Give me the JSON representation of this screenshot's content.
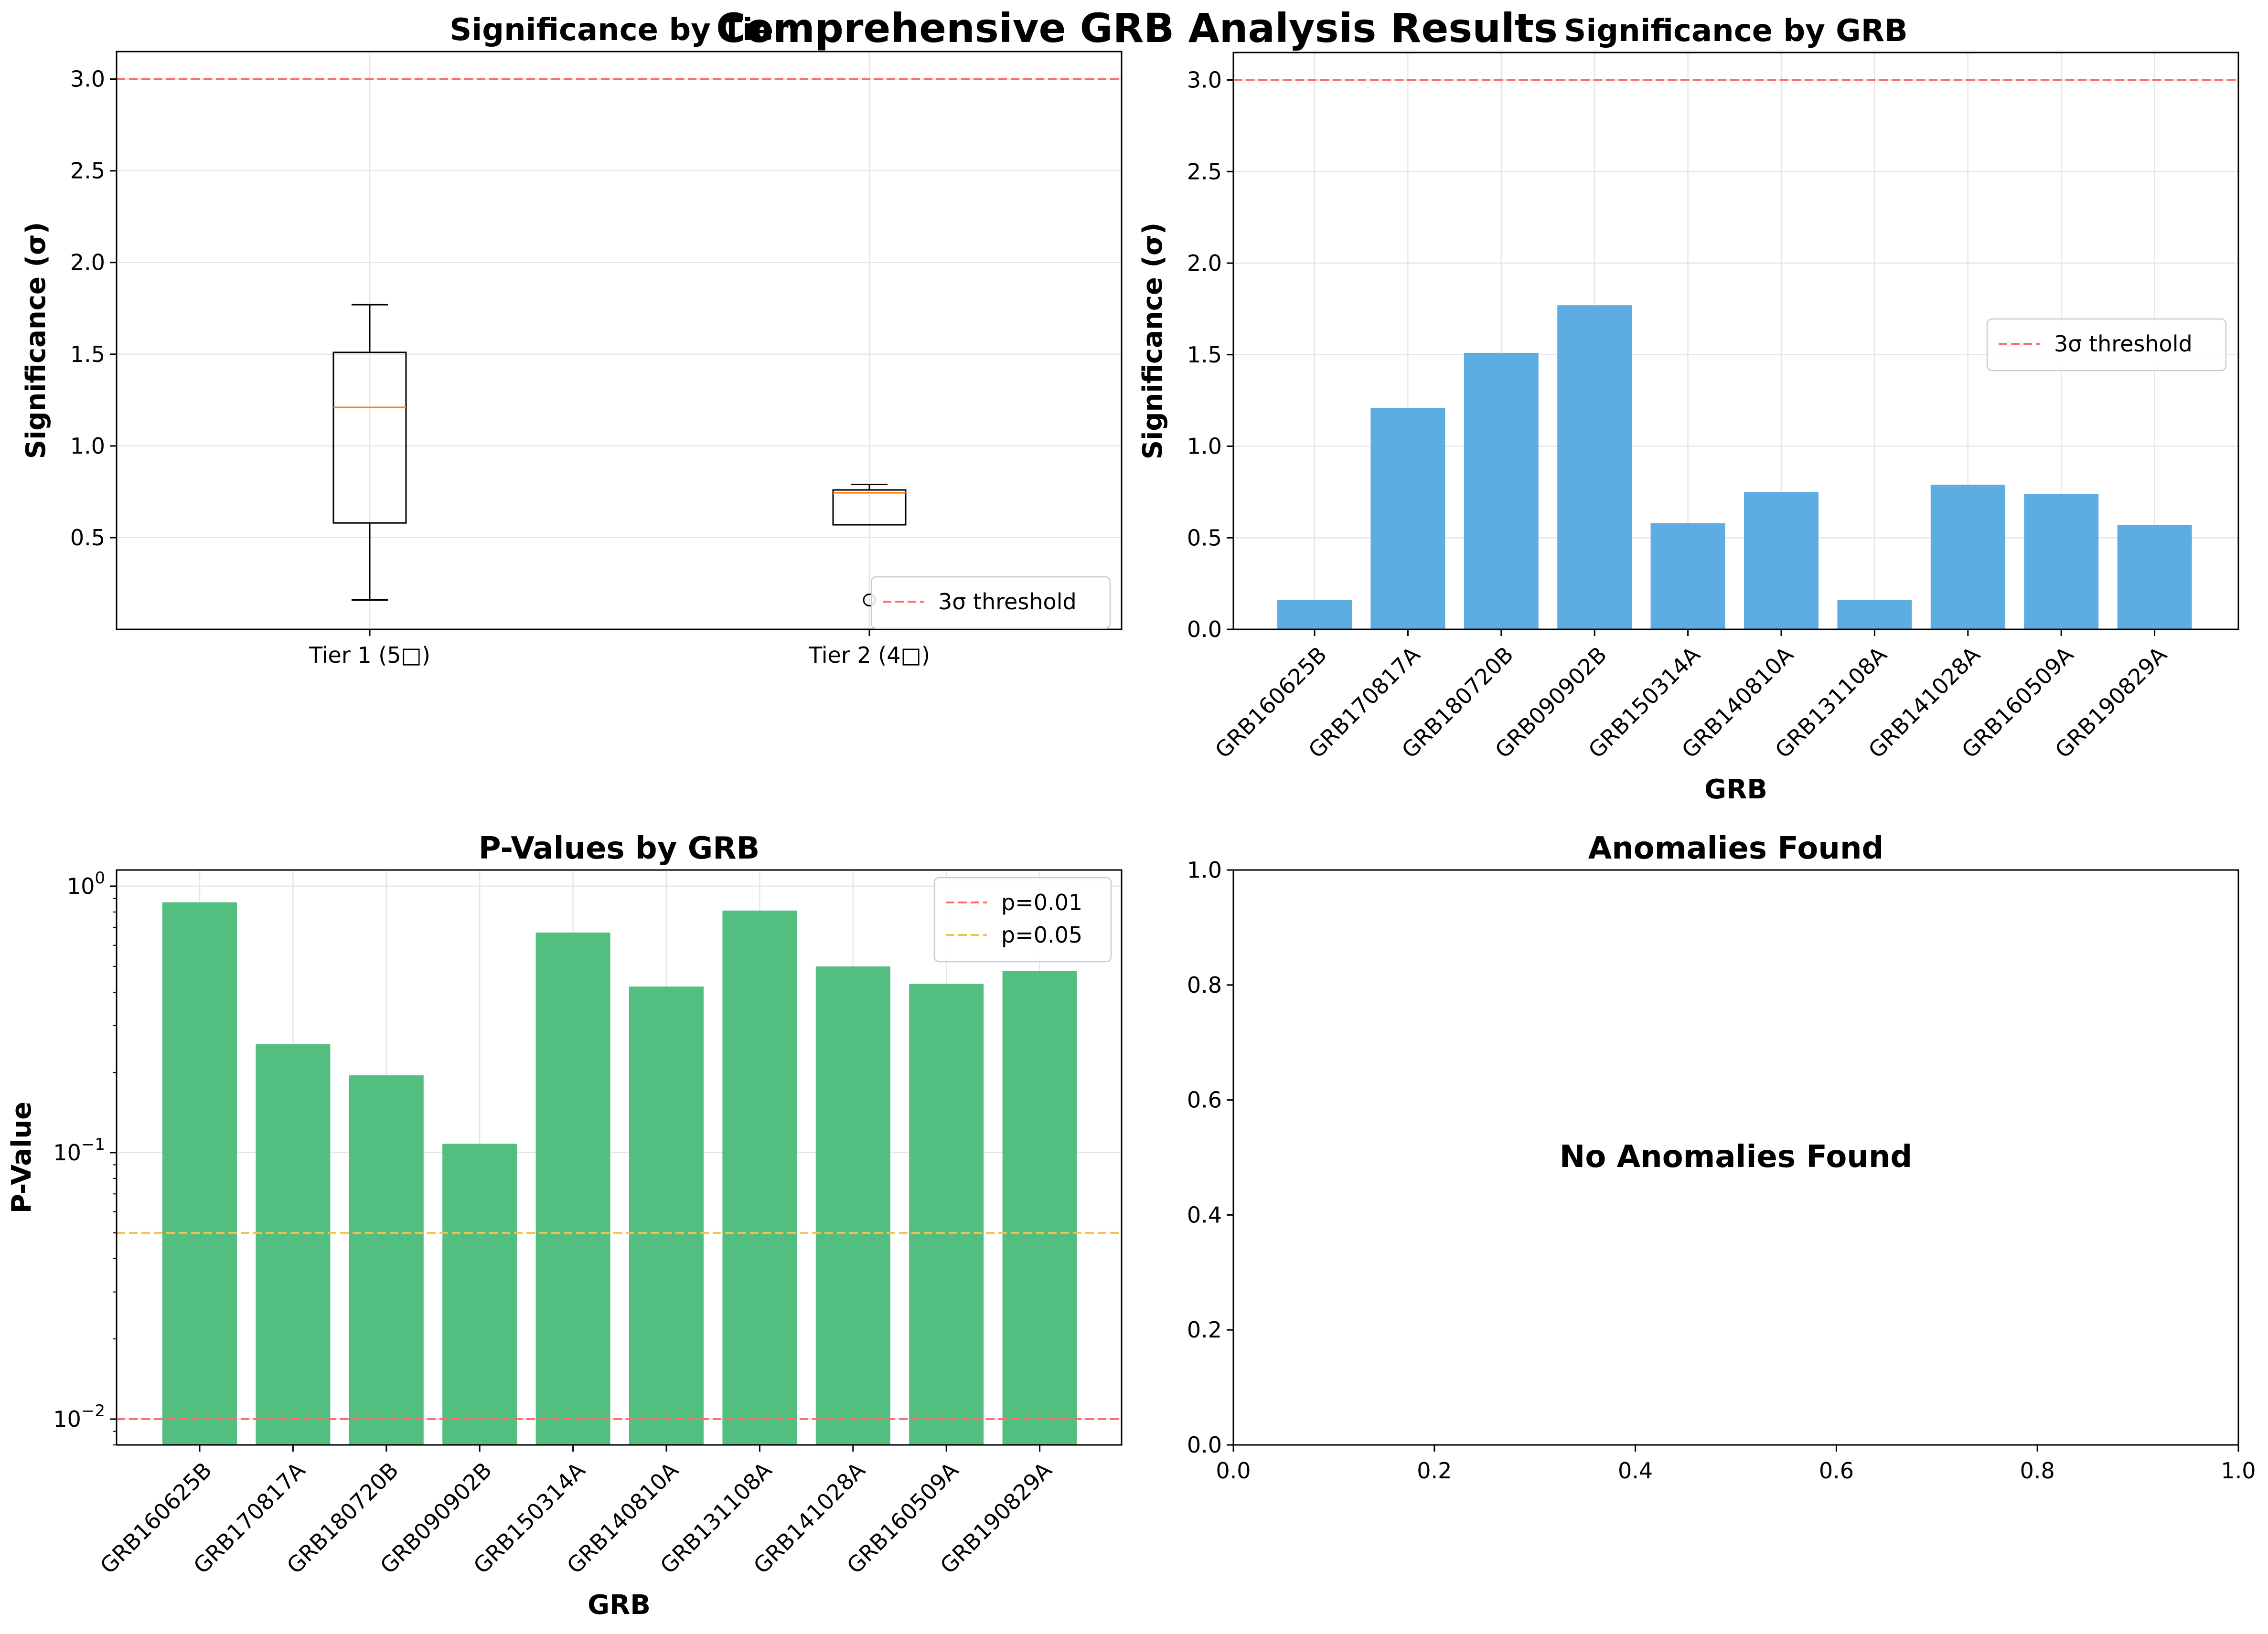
{
  "figure": {
    "suptitle": "Comprehensive GRB Analysis Results"
  },
  "colors": {
    "box": "#000000",
    "median": "#ff7f0e",
    "sig_bar": "#5dade2",
    "pval_bar": "#52be80",
    "threshold_red": "#ff6b6b",
    "threshold_orange": "#f5c04e",
    "grid": "#e6e6e6"
  },
  "chart_data": [
    {
      "id": "tier",
      "type": "box",
      "title": "Significance by Tier",
      "xlabel": "",
      "ylabel": "Significance (σ)",
      "ylim": [
        0.0,
        3.15
      ],
      "yticks": [
        0.5,
        1.0,
        1.5,
        2.0,
        2.5,
        3.0
      ],
      "ytick_labels": [
        "0.5",
        "1.0",
        "1.5",
        "2.0",
        "2.5",
        "3.0"
      ],
      "grid": true,
      "legend": {
        "position": "lower-right",
        "entries": [
          "3σ threshold"
        ]
      },
      "categories": [
        "Tier 1 (5□)",
        "Tier 2 (4□)"
      ],
      "boxes": [
        {
          "whisker_low": 0.16,
          "q1": 0.58,
          "median": 1.21,
          "q3": 1.51,
          "whisker_high": 1.77,
          "outliers": []
        },
        {
          "whisker_low": 0.57,
          "q1": 0.57,
          "median": 0.745,
          "q3": 0.76,
          "whisker_high": 0.79,
          "outliers": [
            0.16
          ]
        }
      ],
      "hlines": [
        {
          "y": 3.0,
          "label": "3σ threshold",
          "color": "#ff6b6b"
        }
      ]
    },
    {
      "id": "sig",
      "type": "bar",
      "title": "Significance by GRB",
      "xlabel": "GRB",
      "ylabel": "Significance (σ)",
      "ylim": [
        0.0,
        3.15
      ],
      "yticks": [
        0.0,
        0.5,
        1.0,
        1.5,
        2.0,
        2.5,
        3.0
      ],
      "ytick_labels": [
        "0.0",
        "0.5",
        "1.0",
        "1.5",
        "2.0",
        "2.5",
        "3.0"
      ],
      "grid": true,
      "legend": {
        "position": "right",
        "entries": [
          "3σ threshold"
        ]
      },
      "categories": [
        "GRB160625B",
        "GRB170817A",
        "GRB180720B",
        "GRB090902B",
        "GRB150314A",
        "GRB140810A",
        "GRB131108A",
        "GRB141028A",
        "GRB160509A",
        "GRB190829A"
      ],
      "values": [
        0.16,
        1.21,
        1.51,
        1.77,
        0.58,
        0.75,
        0.16,
        0.79,
        0.74,
        0.57
      ],
      "hlines": [
        {
          "y": 3.0,
          "label": "3σ threshold",
          "color": "#ff6b6b"
        }
      ]
    },
    {
      "id": "pval",
      "type": "bar",
      "title": "P-Values by GRB",
      "xlabel": "GRB",
      "ylabel": "P-Value",
      "yscale": "log",
      "ylim": [
        0.008,
        1.15
      ],
      "yticks": [
        0.01,
        0.1,
        1.0
      ],
      "ytick_labels": [
        [
          "10",
          "−2"
        ],
        [
          "10",
          "−1"
        ],
        [
          "10",
          "0"
        ]
      ],
      "grid": true,
      "legend": {
        "position": "top-right",
        "entries": [
          "p=0.01",
          "p=0.05"
        ]
      },
      "categories": [
        "GRB160625B",
        "GRB170817A",
        "GRB180720B",
        "GRB090902B",
        "GRB150314A",
        "GRB140810A",
        "GRB131108A",
        "GRB141028A",
        "GRB160509A",
        "GRB190829A"
      ],
      "values": [
        0.87,
        0.255,
        0.195,
        0.108,
        0.67,
        0.42,
        0.81,
        0.5,
        0.43,
        0.48
      ],
      "hlines": [
        {
          "y": 0.01,
          "label": "p=0.01",
          "color": "#ff6b6b"
        },
        {
          "y": 0.05,
          "label": "p=0.05",
          "color": "#f5c04e"
        }
      ]
    },
    {
      "id": "anom",
      "type": "scatter",
      "title": "Anomalies Found",
      "xlim": [
        0.0,
        1.0
      ],
      "ylim": [
        0.0,
        1.0
      ],
      "xticks": [
        0.0,
        0.2,
        0.4,
        0.6,
        0.8,
        1.0
      ],
      "xtick_labels": [
        "0.0",
        "0.2",
        "0.4",
        "0.6",
        "0.8",
        "1.0"
      ],
      "yticks": [
        0.0,
        0.2,
        0.4,
        0.6,
        0.8,
        1.0
      ],
      "ytick_labels": [
        "0.0",
        "0.2",
        "0.4",
        "0.6",
        "0.8",
        "1.0"
      ],
      "grid": false,
      "points": [],
      "annotation": "No Anomalies Found"
    }
  ]
}
